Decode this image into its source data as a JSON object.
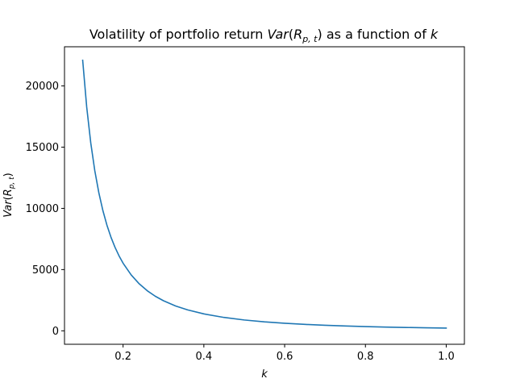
{
  "chart_data": {
    "type": "line",
    "title": {
      "prefix": "Volatility of portfolio return ",
      "var": "Var",
      "open": "(",
      "base": "R",
      "sub": "p, t",
      "close": ")",
      "middle": " as a function of ",
      "k": "k"
    },
    "xlabel": "k",
    "ylabel": {
      "var": "Var",
      "open": "(",
      "base": "R",
      "sub": "p, t",
      "close": ")"
    },
    "xlim": [
      0.055,
      1.045
    ],
    "ylim": [
      -1100,
      23200
    ],
    "xticks": [
      0.2,
      0.4,
      0.6,
      0.8,
      1.0
    ],
    "xtick_labels": [
      "0.2",
      "0.4",
      "0.6",
      "0.8",
      "1.0"
    ],
    "yticks": [
      0,
      5000,
      10000,
      15000,
      20000
    ],
    "ytick_labels": [
      "0",
      "5000",
      "10000",
      "15000",
      "20000"
    ],
    "grid": false,
    "series": [
      {
        "color": "#1f77b4",
        "x": [
          0.1,
          0.11,
          0.12,
          0.13,
          0.14,
          0.15,
          0.16,
          0.17,
          0.18,
          0.19,
          0.2,
          0.22,
          0.24,
          0.26,
          0.28,
          0.3,
          0.33,
          0.36,
          0.4,
          0.45,
          0.5,
          0.55,
          0.6,
          0.65,
          0.7,
          0.75,
          0.8,
          0.85,
          0.9,
          0.95,
          1.0
        ],
        "y": [
          22100,
          18264,
          15347,
          13077,
          11276,
          9822,
          8633,
          7647,
          6821,
          6122,
          5525,
          4566,
          3837,
          3269,
          2819,
          2456,
          2029,
          1705,
          1381,
          1091,
          884,
          731,
          614,
          523,
          451,
          393,
          345,
          306,
          273,
          245,
          221
        ]
      }
    ]
  }
}
